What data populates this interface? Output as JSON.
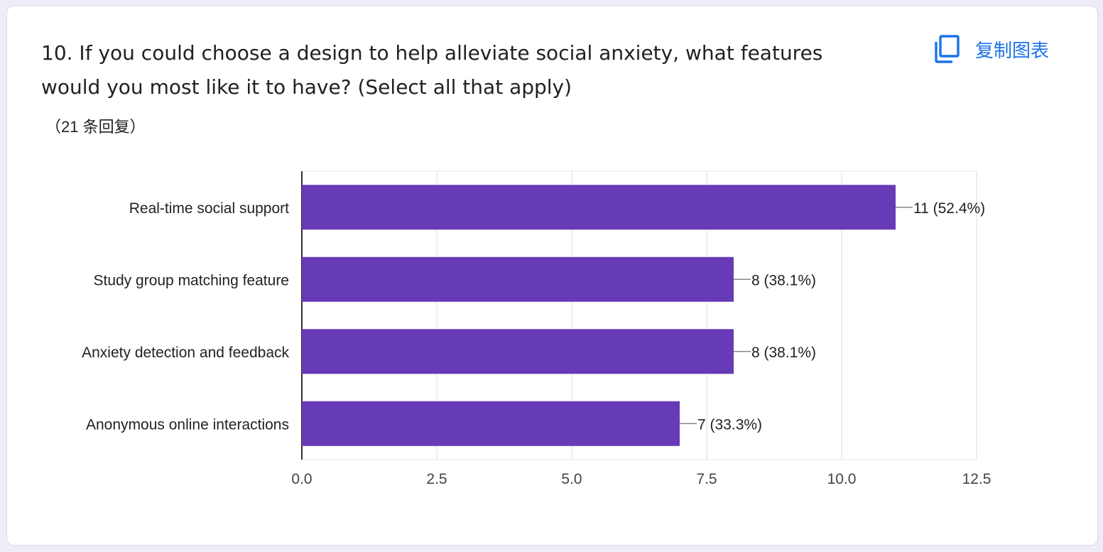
{
  "question": {
    "title": "10.  If you could choose a design to help alleviate social anxiety, what features would you most like it to have? (Select all that apply)",
    "response_count": "（21 条回复）"
  },
  "actions": {
    "copy_chart_label": "复制图表",
    "copy_icon": "copy-icon"
  },
  "colors": {
    "bar": "#673ab7",
    "accent": "#1a73e8"
  },
  "chart_data": {
    "type": "bar",
    "orientation": "horizontal",
    "title": "",
    "xlabel": "",
    "ylabel": "",
    "categories": [
      "Real-time social support",
      "Study group matching feature",
      "Anxiety detection and feedback",
      "Anonymous online interactions"
    ],
    "values": [
      11,
      8,
      8,
      7
    ],
    "data_labels": [
      "11 (52.4%)",
      "8 (38.1%)",
      "8 (38.1%)",
      "7 (33.3%)"
    ],
    "xlim": [
      0,
      12.5
    ],
    "xticks": [
      "0.0",
      "2.5",
      "5.0",
      "7.5",
      "10.0",
      "12.5"
    ],
    "grid": true,
    "legend": "none"
  }
}
